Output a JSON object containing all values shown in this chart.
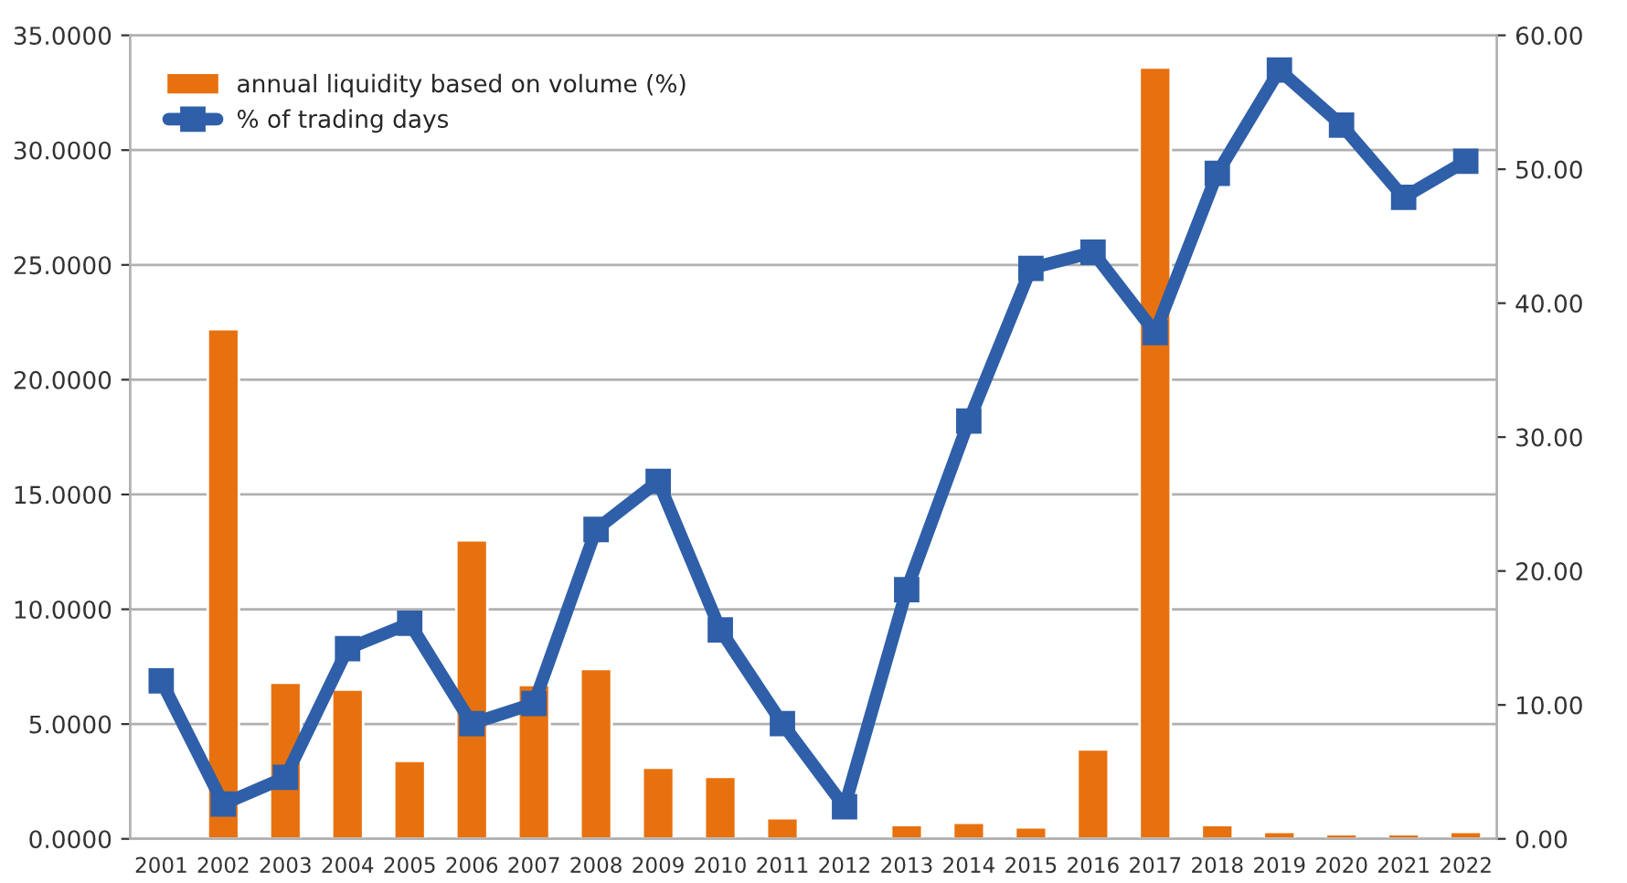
{
  "chart_data": {
    "type": "bar",
    "categories": [
      "2001",
      "2002",
      "2003",
      "2004",
      "2005",
      "2006",
      "2007",
      "2008",
      "2009",
      "2010",
      "2011",
      "2012",
      "2013",
      "2014",
      "2015",
      "2016",
      "2017",
      "2018",
      "2019",
      "2020",
      "2021",
      "2022"
    ],
    "series": [
      {
        "name": "annual liquidity based on volume (%)",
        "color": "#e8710f",
        "values": [
          null,
          22.2,
          6.8,
          6.5,
          3.4,
          13.0,
          6.7,
          7.4,
          3.1,
          2.7,
          0.9,
          null,
          0.6,
          0.7,
          0.5,
          3.9,
          33.6,
          0.6,
          0.3,
          0.2,
          0.2,
          0.3
        ]
      },
      {
        "name": "% of trading days",
        "type": "line",
        "axis": "y2",
        "color": "#2f5fa8",
        "marker": "square",
        "values": [
          11.8,
          2.6,
          4.6,
          14.2,
          16.1,
          8.6,
          10.1,
          23.1,
          26.7,
          15.6,
          8.6,
          2.4,
          18.6,
          31.2,
          42.6,
          43.8,
          37.8,
          49.7,
          57.4,
          53.3,
          47.9,
          50.6
        ]
      }
    ],
    "ylim": [
      0,
      35
    ],
    "yticks": [
      {
        "value": 0,
        "label": "0.0000"
      },
      {
        "value": 5,
        "label": "5.0000"
      },
      {
        "value": 10,
        "label": "10.0000"
      },
      {
        "value": 15,
        "label": "15.0000"
      },
      {
        "value": 20,
        "label": "20.0000"
      },
      {
        "value": 25,
        "label": "25.0000"
      },
      {
        "value": 30,
        "label": "30.0000"
      },
      {
        "value": 35,
        "label": "35.0000"
      }
    ],
    "y2lim": [
      0,
      60
    ],
    "y2ticks": [
      {
        "value": 0,
        "label": "0.00"
      },
      {
        "value": 10,
        "label": "10.00"
      },
      {
        "value": 20,
        "label": "20.00"
      },
      {
        "value": 30,
        "label": "30.00"
      },
      {
        "value": 40,
        "label": "40.00"
      },
      {
        "value": 50,
        "label": "50.00"
      },
      {
        "value": 60,
        "label": "60.00"
      }
    ],
    "grid": "y",
    "legend": "top left"
  }
}
